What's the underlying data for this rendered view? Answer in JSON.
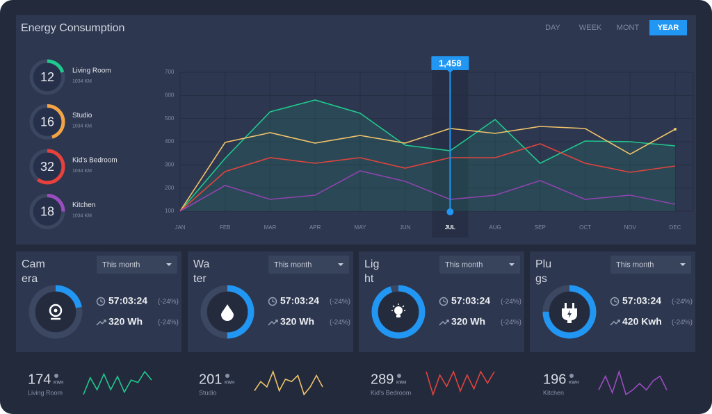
{
  "header": {
    "title": "Energy Consumption",
    "tabs": [
      "DAY",
      "WEEK",
      "MONT",
      "YEAR"
    ],
    "active_tab": "YEAR"
  },
  "rooms": [
    {
      "value": 12,
      "progress": 20,
      "color": "#1fc98e",
      "name": "Living Room",
      "detail": "1034 KM"
    },
    {
      "value": 16,
      "progress": 45,
      "color": "#f5a444",
      "name": "Studio",
      "detail": "1034 KM"
    },
    {
      "value": 32,
      "progress": 60,
      "color": "#e8413c",
      "name": "Kid's Bedroom",
      "detail": "1034 KM"
    },
    {
      "value": 18,
      "progress": 25,
      "color": "#9b4dbf",
      "name": "Kitchen",
      "detail": "1034 KM"
    }
  ],
  "chart_data": {
    "type": "line",
    "categories": [
      "JAN",
      "FEB",
      "MAR",
      "APR",
      "MAY",
      "JUN",
      "JUL",
      "AUG",
      "SEP",
      "OCT",
      "NOV",
      "DEC"
    ],
    "series": [
      {
        "color": "#1fc98e",
        "area": true,
        "values": [
          100,
          328,
          529,
          580,
          523,
          385,
          361,
          496,
          307,
          403,
          400,
          382
        ]
      },
      {
        "color": "#f0c36a",
        "values": [
          100,
          397,
          439,
          394,
          427,
          394,
          457,
          436,
          466,
          457,
          346,
          454
        ]
      },
      {
        "color": "#e0443e",
        "values": [
          100,
          271,
          331,
          307,
          331,
          286,
          331,
          331,
          391,
          307,
          268,
          295
        ]
      },
      {
        "color": "#8e44ad",
        "values": [
          100,
          211,
          151,
          169,
          274,
          229,
          151,
          169,
          232,
          151,
          169,
          130
        ]
      }
    ],
    "ylim": [
      100,
      700
    ],
    "yticks": [
      100,
      200,
      300,
      400,
      500,
      600,
      700
    ],
    "grid": true,
    "highlight": {
      "category": "JUL",
      "label": "1,458",
      "color": "#2196f3"
    }
  },
  "devices": [
    {
      "name": "Camera",
      "period": "This month",
      "progress": 22,
      "icon": "camera",
      "time": "57:03:24",
      "time_change": "(-24%)",
      "energy": "320 Wh",
      "energy_change": "(-24%)"
    },
    {
      "name": "Water",
      "period": "This month",
      "progress": 50,
      "icon": "drop",
      "time": "57:03:24",
      "time_change": "(-24%)",
      "energy": "320 Wh",
      "energy_change": "(-24%)"
    },
    {
      "name": "Light",
      "period": "This month",
      "progress": 95,
      "icon": "bulb",
      "time": "57:03:24",
      "time_change": "(-24%)",
      "energy": "320 Wh",
      "energy_change": "(-24%)"
    },
    {
      "name": "Plugs",
      "period": "This month",
      "progress": 75,
      "icon": "plug",
      "time": "57:03:24",
      "time_change": "(-24%)",
      "energy": "420 Kwh",
      "energy_change": "(-24%)"
    }
  ],
  "sparklines": [
    {
      "value": 174,
      "unit": "KWH",
      "label": "Living Room",
      "color": "#1fc98e",
      "values": [
        6,
        20,
        10,
        23,
        10,
        21,
        8,
        18,
        16,
        25,
        18
      ]
    },
    {
      "value": 201,
      "unit": "KWH",
      "label": "Studio",
      "color": "#f0c36a",
      "values": [
        8,
        20,
        13,
        33,
        8,
        23,
        20,
        28,
        3,
        13,
        28,
        13
      ]
    },
    {
      "value": 289,
      "unit": "KWH",
      "label": "Kid's Bedroom",
      "color": "#e0443e",
      "values": [
        23,
        3,
        20,
        10,
        23,
        6,
        20,
        8,
        23,
        13,
        23
      ]
    },
    {
      "value": 196,
      "unit": "KWH",
      "label": "Kitchen",
      "color": "#9b4dbf",
      "values": [
        13,
        28,
        10,
        33,
        8,
        13,
        20,
        13,
        23,
        28,
        13
      ]
    }
  ]
}
